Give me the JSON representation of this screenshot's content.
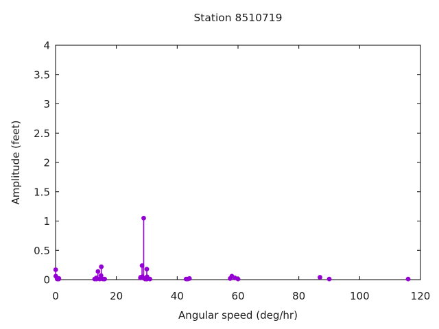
{
  "page": {
    "background": "#ffffff"
  },
  "chart_data": {
    "type": "scatter",
    "style": "stem-and-points",
    "title": "Station 8510719",
    "xlabel": "Angular speed (deg/hr)",
    "ylabel": "Amplitude (feet)",
    "xlim": [
      0,
      120
    ],
    "ylim": [
      0,
      4
    ],
    "grid": false,
    "legend": "none",
    "point_color": "#9400d3",
    "axis_color": "#000000",
    "text_color": "#1a1a1a",
    "xticks": [
      {
        "value": 0,
        "label": "0"
      },
      {
        "value": 20,
        "label": "20"
      },
      {
        "value": 40,
        "label": "40"
      },
      {
        "value": 60,
        "label": "60"
      },
      {
        "value": 80,
        "label": "80"
      },
      {
        "value": 100,
        "label": "100"
      },
      {
        "value": 120,
        "label": "120"
      }
    ],
    "yticks": [
      {
        "value": 0,
        "label": "0"
      },
      {
        "value": 0.5,
        "label": "0.5"
      },
      {
        "value": 1,
        "label": "1"
      },
      {
        "value": 1.5,
        "label": "1.5"
      },
      {
        "value": 2,
        "label": "2"
      },
      {
        "value": 2.5,
        "label": "2.5"
      },
      {
        "value": 3,
        "label": "3"
      },
      {
        "value": 3.5,
        "label": "3.5"
      },
      {
        "value": 4,
        "label": "4"
      }
    ],
    "points": [
      {
        "x": 0.04,
        "y": 0.17
      },
      {
        "x": 0.08,
        "y": 0.06
      },
      {
        "x": 0.54,
        "y": 0.01
      },
      {
        "x": 1.02,
        "y": 0.01
      },
      {
        "x": 1.1,
        "y": 0.02
      },
      {
        "x": 12.85,
        "y": 0.01
      },
      {
        "x": 13.4,
        "y": 0.03
      },
      {
        "x": 13.47,
        "y": 0.01
      },
      {
        "x": 13.94,
        "y": 0.14
      },
      {
        "x": 14.5,
        "y": 0.01
      },
      {
        "x": 14.96,
        "y": 0.07
      },
      {
        "x": 15.0,
        "y": 0.02
      },
      {
        "x": 15.04,
        "y": 0.22
      },
      {
        "x": 15.59,
        "y": 0.01
      },
      {
        "x": 16.14,
        "y": 0.01
      },
      {
        "x": 27.9,
        "y": 0.03
      },
      {
        "x": 27.97,
        "y": 0.04
      },
      {
        "x": 28.44,
        "y": 0.24
      },
      {
        "x": 28.51,
        "y": 0.05
      },
      {
        "x": 28.98,
        "y": 1.05
      },
      {
        "x": 29.46,
        "y": 0.01
      },
      {
        "x": 29.53,
        "y": 0.02
      },
      {
        "x": 29.96,
        "y": 0.01
      },
      {
        "x": 30.0,
        "y": 0.18
      },
      {
        "x": 30.04,
        "y": 0.01
      },
      {
        "x": 30.08,
        "y": 0.05
      },
      {
        "x": 31.02,
        "y": 0.01
      },
      {
        "x": 42.93,
        "y": 0.01
      },
      {
        "x": 43.48,
        "y": 0.01
      },
      {
        "x": 44.03,
        "y": 0.02
      },
      {
        "x": 57.42,
        "y": 0.02
      },
      {
        "x": 57.97,
        "y": 0.06
      },
      {
        "x": 58.98,
        "y": 0.03
      },
      {
        "x": 60.0,
        "y": 0.01
      },
      {
        "x": 86.95,
        "y": 0.04
      },
      {
        "x": 90.0,
        "y": 0.01
      },
      {
        "x": 115.94,
        "y": 0.01
      }
    ]
  }
}
